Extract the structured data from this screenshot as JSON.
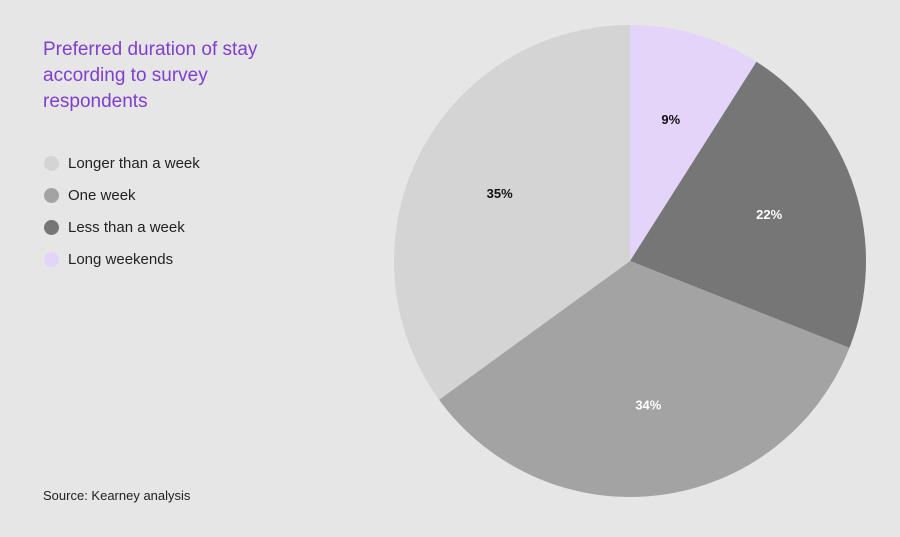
{
  "chart_data": {
    "type": "pie",
    "title": "Preferred duration of stay according to survey respondents",
    "source": "Source: Kearney analysis",
    "legend_position": "left",
    "slices": [
      {
        "name": "Long weekends",
        "value": 9,
        "label": "9%",
        "color": "#e5d4fa",
        "label_color": "#111111"
      },
      {
        "name": "Less than a week",
        "value": 22,
        "label": "22%",
        "color": "#767676",
        "label_color": "#ffffff"
      },
      {
        "name": "One week",
        "value": 34,
        "label": "34%",
        "color": "#a3a3a3",
        "label_color": "#ffffff"
      },
      {
        "name": "Longer than a week",
        "value": 35,
        "label": "35%",
        "color": "#d4d4d4",
        "label_color": "#111111"
      }
    ],
    "legend_order": [
      "Longer than a week",
      "One week",
      "Less than a week",
      "Long weekends"
    ]
  }
}
